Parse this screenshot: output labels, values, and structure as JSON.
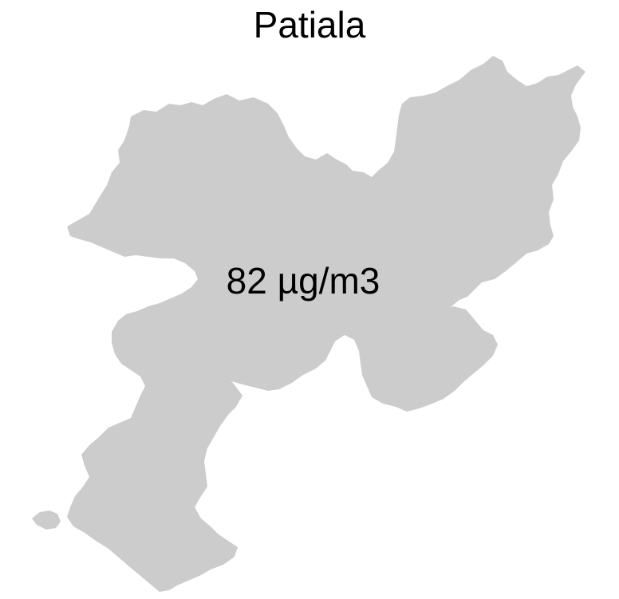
{
  "map": {
    "title": "Patiala",
    "region_name": "Patiala",
    "value_label": "82 µg/m3",
    "fill_color": "#cccccc",
    "background_color": "#ffffff"
  }
}
